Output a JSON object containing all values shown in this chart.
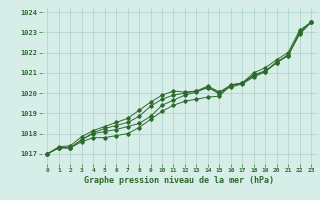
{
  "x": [
    0,
    1,
    2,
    3,
    4,
    5,
    6,
    7,
    8,
    9,
    10,
    11,
    12,
    13,
    14,
    15,
    16,
    17,
    18,
    19,
    20,
    21,
    22,
    23
  ],
  "line1": [
    1017.0,
    1017.3,
    1017.3,
    1017.6,
    1017.8,
    1017.8,
    1017.9,
    1018.0,
    1018.3,
    1018.7,
    1019.1,
    1019.4,
    1019.6,
    1019.7,
    1019.8,
    1019.85,
    1020.4,
    1020.5,
    1020.9,
    1021.1,
    1021.5,
    1021.9,
    1022.9,
    1023.5
  ],
  "line2": [
    1017.0,
    1017.3,
    1017.3,
    1017.7,
    1018.0,
    1018.1,
    1018.2,
    1018.35,
    1018.5,
    1018.85,
    1019.4,
    1019.65,
    1019.9,
    1020.05,
    1020.3,
    1019.95,
    1020.35,
    1020.5,
    1020.85,
    1021.05,
    1021.5,
    1021.85,
    1022.95,
    1023.5
  ],
  "line3": [
    1017.0,
    1017.3,
    1017.3,
    1017.7,
    1018.05,
    1018.25,
    1018.4,
    1018.55,
    1018.85,
    1019.35,
    1019.7,
    1019.9,
    1020.0,
    1020.1,
    1020.25,
    1020.05,
    1020.3,
    1020.45,
    1020.8,
    1021.05,
    1021.55,
    1021.85,
    1023.0,
    1023.5
  ],
  "line4": [
    1017.0,
    1017.35,
    1017.4,
    1017.85,
    1018.15,
    1018.35,
    1018.55,
    1018.75,
    1019.15,
    1019.55,
    1019.9,
    1020.1,
    1020.05,
    1020.1,
    1020.35,
    1020.05,
    1020.4,
    1020.5,
    1021.0,
    1021.25,
    1021.65,
    1022.0,
    1023.1,
    1023.5
  ],
  "bg_color": "#d7ede8",
  "line_color": "#2d6a2d",
  "grid_color": "#aacfcf",
  "xlabel": "Graphe pression niveau de la mer (hPa)",
  "ylim": [
    1016.5,
    1024.2
  ],
  "xlim": [
    -0.5,
    23.5
  ],
  "yticks": [
    1017,
    1018,
    1019,
    1020,
    1021,
    1022,
    1023,
    1024
  ],
  "xticks": [
    0,
    1,
    2,
    3,
    4,
    5,
    6,
    7,
    8,
    9,
    10,
    11,
    12,
    13,
    14,
    15,
    16,
    17,
    18,
    19,
    20,
    21,
    22,
    23
  ],
  "xtick_labels": [
    "0",
    "1",
    "2",
    "3",
    "4",
    "5",
    "6",
    "7",
    "8",
    "9",
    "10",
    "11",
    "12",
    "13",
    "14",
    "15",
    "16",
    "17",
    "18",
    "19",
    "20",
    "21",
    "22",
    "23"
  ]
}
